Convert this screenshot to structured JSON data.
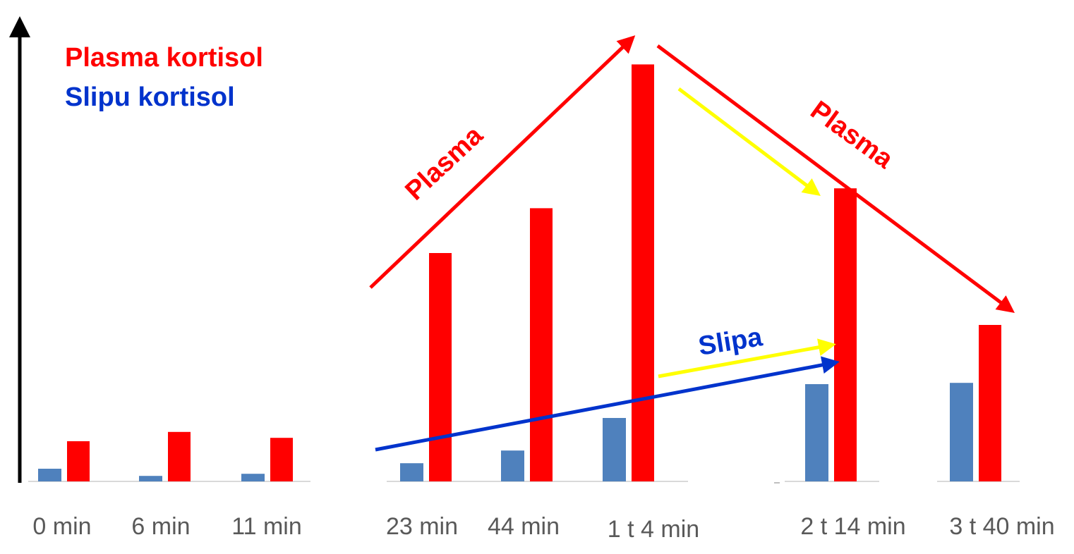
{
  "chart_data": {
    "type": "bar",
    "title": "",
    "xlabel": "",
    "ylabel": "",
    "legend_position": "top-left",
    "grid": false,
    "categories": [
      "0 min",
      "6 min",
      "11 min",
      "23 min",
      "44 min",
      "1 t 4 min",
      "2 t 14 min",
      "3 t 40 min"
    ],
    "series": [
      {
        "name": "Slipu kortisol",
        "color": "#4F81BD",
        "values": [
          3.0,
          1.3,
          1.8,
          4.3,
          7.3,
          15.0,
          23.0,
          23.3
        ]
      },
      {
        "name": "Plasma kortisol",
        "color": "#FF0000",
        "values": [
          9.5,
          11.7,
          10.3,
          54.0,
          64.6,
          98.6,
          69.3,
          37.0
        ]
      }
    ],
    "ylim": [
      0,
      100
    ],
    "legend": [
      {
        "label": "Plasma kortisol",
        "color": "#FF0000"
      },
      {
        "label": "Slipu kortisol",
        "color": "#0033CC"
      }
    ],
    "annotations": [
      {
        "label": "Plasma",
        "color": "#FF0000"
      },
      {
        "label": "Plasma",
        "color": "#FF0000"
      },
      {
        "label": "Slipa",
        "color": "#0033CC"
      }
    ],
    "arrow_colors": {
      "plasma": "#FF0000",
      "slipa": "#0033CC",
      "highlight": "#FFFF00"
    }
  }
}
